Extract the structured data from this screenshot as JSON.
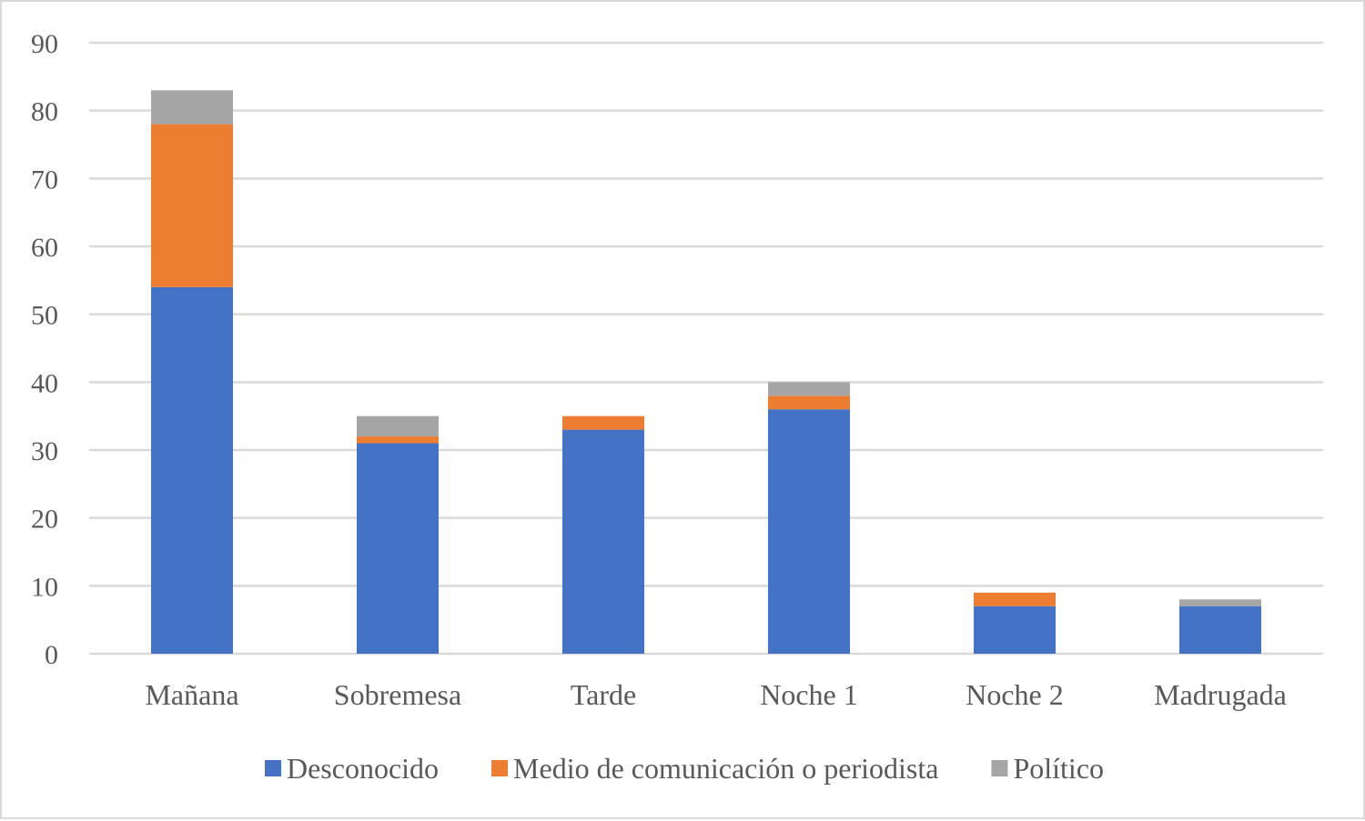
{
  "chart_data": {
    "type": "bar",
    "stacked": true,
    "title": "",
    "xlabel": "",
    "ylabel": "",
    "categories": [
      "Mañana",
      "Sobremesa",
      "Tarde",
      "Noche 1",
      "Noche 2",
      "Madrugada"
    ],
    "series": [
      {
        "name": "Desconocido",
        "color": "#4472c4",
        "values": [
          54,
          31,
          33,
          36,
          7,
          7
        ]
      },
      {
        "name": "Medio de comunicación o periodista",
        "color": "#ed7d31",
        "values": [
          24,
          1,
          2,
          2,
          2,
          0
        ]
      },
      {
        "name": "Político",
        "color": "#a5a5a5",
        "values": [
          5,
          3,
          0,
          2,
          0,
          1
        ]
      }
    ],
    "ylim": [
      0,
      90
    ],
    "yticks": [
      0,
      10,
      20,
      30,
      40,
      50,
      60,
      70,
      80,
      90
    ],
    "grid": true,
    "legend": "bottom"
  }
}
